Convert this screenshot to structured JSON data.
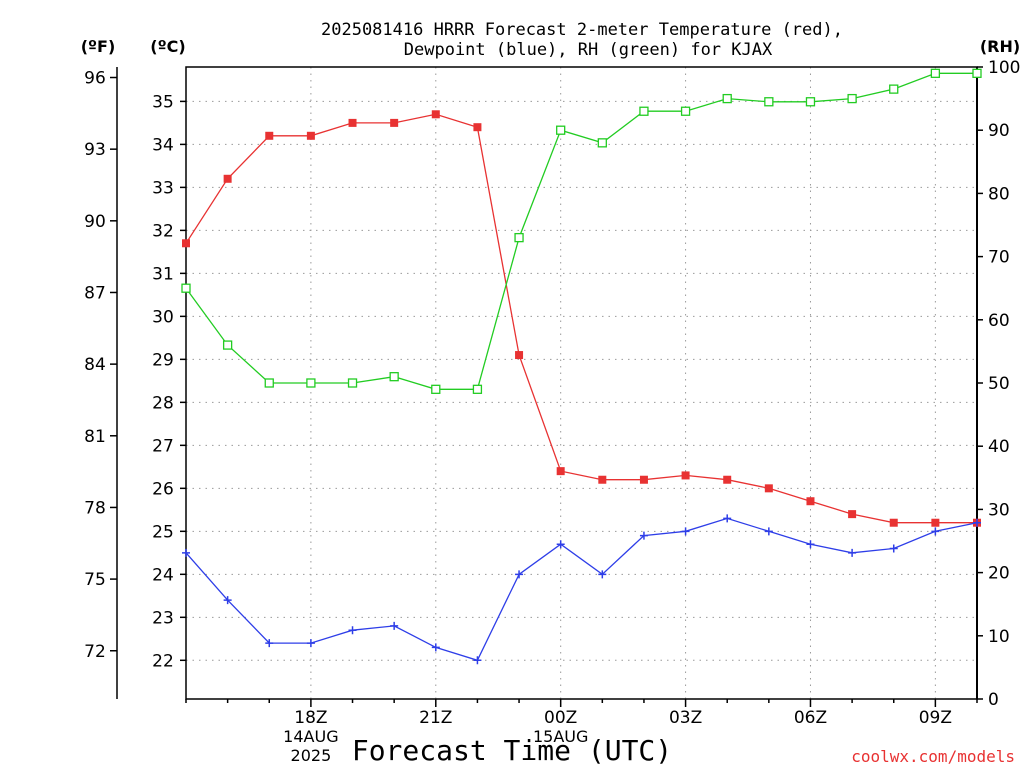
{
  "chart_data": {
    "type": "line",
    "title_line1": "2025081416 HRRR Forecast 2-meter Temperature (red),",
    "title_line2": "Dewpoint (blue), RH (green) for KJAX",
    "xlabel": "Forecast Time (UTC)",
    "unit_f": "(ºF)",
    "unit_c": "(ºC)",
    "unit_rh": "(RH)",
    "watermark": "coolwx.com/models",
    "x": [
      "15Z",
      "16Z",
      "17Z",
      "18Z",
      "19Z",
      "20Z",
      "21Z",
      "22Z",
      "23Z",
      "00Z",
      "01Z",
      "02Z",
      "03Z",
      "04Z",
      "05Z",
      "06Z",
      "07Z",
      "08Z",
      "09Z",
      "10Z"
    ],
    "x_ticks": [
      {
        "label": "18Z",
        "index": 3,
        "sub1": "14AUG",
        "sub2": "2025"
      },
      {
        "label": "21Z",
        "index": 6,
        "sub1": "",
        "sub2": ""
      },
      {
        "label": "00Z",
        "index": 9,
        "sub1": "15AUG",
        "sub2": ""
      },
      {
        "label": "03Z",
        "index": 12,
        "sub1": "",
        "sub2": ""
      },
      {
        "label": "06Z",
        "index": 15,
        "sub1": "",
        "sub2": ""
      },
      {
        "label": "09Z",
        "index": 18,
        "sub1": "",
        "sub2": ""
      }
    ],
    "y_celsius_ticks": [
      22,
      23,
      24,
      25,
      26,
      27,
      28,
      29,
      30,
      31,
      32,
      33,
      34,
      35
    ],
    "y_fahrenheit_ticks": [
      72,
      75,
      78,
      81,
      84,
      87,
      90,
      93,
      96
    ],
    "y_rh_ticks": [
      0,
      10,
      20,
      30,
      40,
      50,
      60,
      70,
      80,
      90,
      100
    ],
    "ylim_celsius": [
      21.1,
      35.8
    ],
    "ylim_rh": [
      0,
      100
    ],
    "grid": true,
    "series": [
      {
        "name": "Temperature",
        "axis": "celsius",
        "color": "#e83232",
        "marker": "filled-square",
        "values": [
          31.7,
          33.2,
          34.2,
          34.2,
          34.5,
          34.5,
          34.7,
          34.4,
          29.1,
          26.4,
          26.2,
          26.2,
          26.3,
          26.2,
          26.0,
          25.7,
          25.4,
          25.2,
          25.2,
          25.2
        ]
      },
      {
        "name": "Dewpoint",
        "axis": "celsius",
        "color": "#2e3ee8",
        "marker": "plus",
        "values": [
          24.5,
          23.4,
          22.4,
          22.4,
          22.7,
          22.8,
          22.3,
          22.0,
          24.0,
          24.7,
          24.0,
          24.9,
          25.0,
          25.3,
          25.0,
          24.7,
          24.5,
          24.6,
          25.0,
          25.2
        ]
      },
      {
        "name": "RH",
        "axis": "rh",
        "color": "#22cc22",
        "marker": "open-square",
        "values": [
          65,
          56,
          50,
          50,
          50,
          51,
          49,
          49,
          73,
          90,
          88,
          93,
          93,
          95,
          94.5,
          94.5,
          95,
          96.5,
          99,
          99
        ]
      }
    ]
  }
}
